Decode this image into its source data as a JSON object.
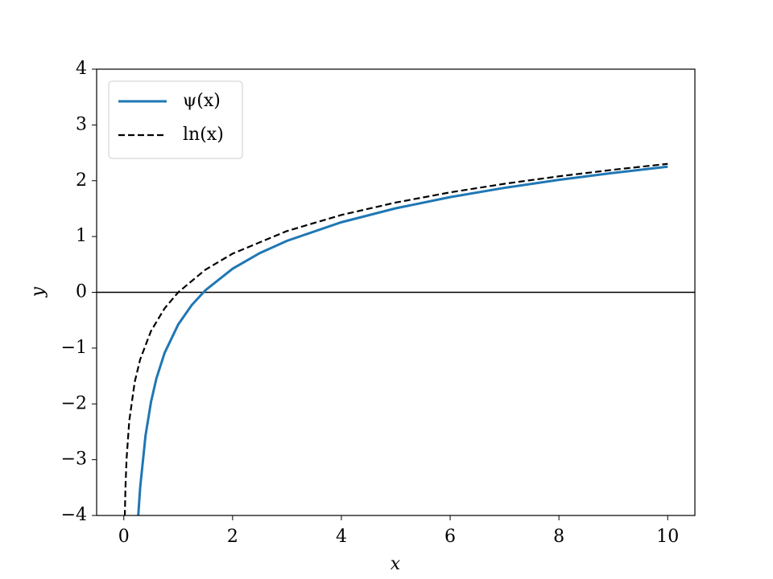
{
  "chart_data": {
    "type": "line",
    "xlabel": "x",
    "ylabel": "y",
    "xlim": [
      -0.5,
      10.5
    ],
    "ylim": [
      -4,
      4
    ],
    "xticks": [
      0,
      2,
      4,
      6,
      8,
      10
    ],
    "yticks": [
      {
        "value": -4,
        "label": "−4"
      },
      {
        "value": -3,
        "label": "−3"
      },
      {
        "value": -2,
        "label": "−2"
      },
      {
        "value": -1,
        "label": "−1"
      },
      0,
      1,
      2,
      3,
      4
    ],
    "hline": 0,
    "legend": "upper left",
    "series": [
      {
        "name": "ψ(x)",
        "color": "#1f77b4",
        "dash": "solid",
        "x": [
          0.25,
          0.3,
          0.4,
          0.5,
          0.6,
          0.75,
          1,
          1.25,
          1.5,
          2,
          2.5,
          3,
          4,
          5,
          6,
          7,
          8,
          9,
          10
        ],
        "values": [
          -4.227,
          -3.5025,
          -2.5614,
          -1.9635,
          -1.5406,
          -1.0858,
          -0.5772,
          -0.2275,
          0.0365,
          0.4228,
          0.7032,
          0.9228,
          1.2561,
          1.5061,
          1.7061,
          1.8728,
          2.0156,
          2.1406,
          2.2518
        ]
      },
      {
        "name": "ln(x)",
        "color": "#000000",
        "dash": "dashed",
        "x": [
          0.018,
          0.03,
          0.05,
          0.1,
          0.2,
          0.3,
          0.5,
          0.75,
          1,
          1.5,
          2,
          3,
          4,
          5,
          6,
          7,
          8,
          9,
          10
        ],
        "values": [
          -4.017,
          -3.5066,
          -2.9957,
          -2.3026,
          -1.6094,
          -1.204,
          -0.6931,
          -0.2877,
          0,
          0.4055,
          0.6931,
          1.0986,
          1.3863,
          1.6094,
          1.7918,
          1.9459,
          2.0794,
          2.1972,
          2.3026
        ]
      }
    ]
  }
}
